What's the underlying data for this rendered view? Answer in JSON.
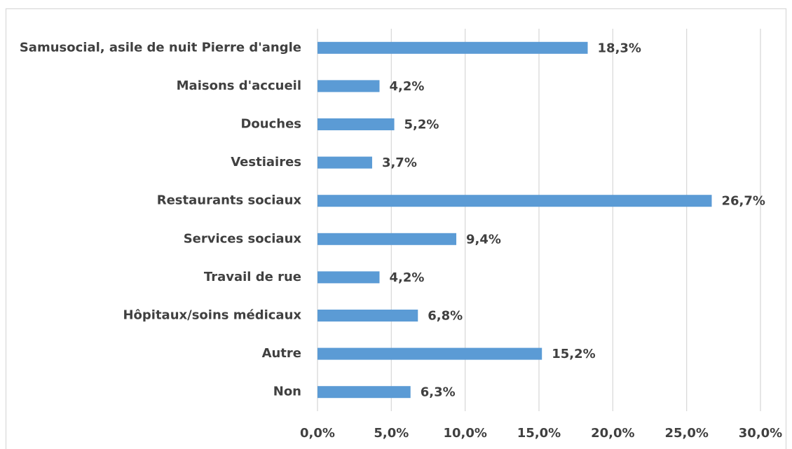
{
  "chart_data": {
    "type": "bar",
    "orientation": "horizontal",
    "categories": [
      "Samusocial, asile de nuit Pierre d'angle",
      "Maisons d'accueil",
      "Douches",
      "Vestiaires",
      "Restaurants sociaux",
      "Services sociaux",
      "Travail de rue",
      "Hôpitaux/soins médicaux",
      "Autre",
      "Non"
    ],
    "values": [
      18.3,
      4.2,
      5.2,
      3.7,
      26.7,
      9.4,
      4.2,
      6.8,
      15.2,
      6.3
    ],
    "value_labels": [
      "18,3%",
      "4,2%",
      "5,2%",
      "3,7%",
      "26,7%",
      "9,4%",
      "4,2%",
      "6,8%",
      "15,2%",
      "6,3%"
    ],
    "color": "#5b9bd5",
    "xlim": [
      0,
      30
    ],
    "xticks": [
      {
        "value": 0,
        "label": "0,0%"
      },
      {
        "value": 5,
        "label": "5,0%"
      },
      {
        "value": 10,
        "label": "10,0%"
      },
      {
        "value": 15,
        "label": "15,0%"
      },
      {
        "value": 20,
        "label": "20,0%"
      },
      {
        "value": 25,
        "label": "25,0%"
      },
      {
        "value": 30,
        "label": "30,0%"
      }
    ],
    "grid": true
  }
}
